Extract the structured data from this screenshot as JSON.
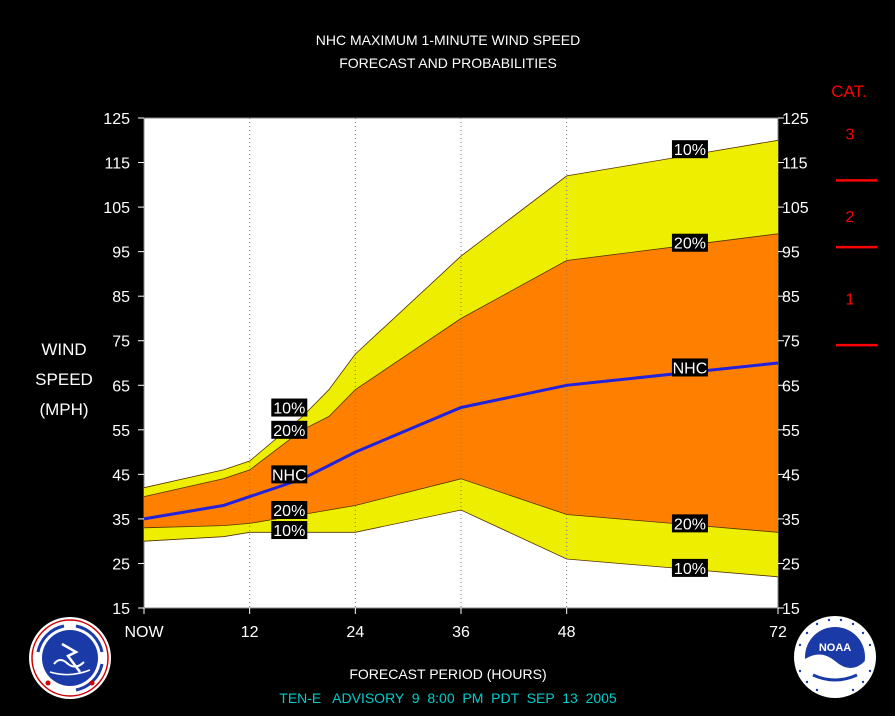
{
  "title_line1": "NHC MAXIMUM 1-MINUTE WIND SPEED",
  "title_line2": "FORECAST AND PROBABILITIES",
  "ylabel_lines": [
    "WIND",
    "SPEED",
    "(MPH)"
  ],
  "xlabel": "FORECAST PERIOD (HOURS)",
  "advisory": "TEN-E   ADVISORY  9  8:00  PM  PDT  SEP  13  2005",
  "category_header": "CAT.",
  "categories": [
    {
      "label": "3",
      "center_mph": 121.5
    },
    {
      "label": "2",
      "center_mph": 103
    },
    {
      "label": "1",
      "center_mph": 84.5
    }
  ],
  "category_boundaries_mph": [
    111,
    96,
    74
  ],
  "logos": {
    "left": "national-weather-service-logo",
    "right": "noaa-logo"
  },
  "colors": {
    "background": "#000000",
    "plot_bg": "#ffffff",
    "band_10": "#eeee00",
    "band_20": "#ff8000",
    "nhc_line": "#2222dd",
    "category": "#ff0000",
    "advisory_text": "#00cccc"
  },
  "chart_data": {
    "type": "area",
    "title": "NHC MAXIMUM 1-MINUTE WIND SPEED FORECAST AND PROBABILITIES",
    "xlabel": "FORECAST PERIOD (HOURS)",
    "ylabel": "WIND SPEED (MPH)",
    "x_ticks": [
      {
        "value": 0,
        "label": "NOW"
      },
      {
        "value": 12,
        "label": "12"
      },
      {
        "value": 24,
        "label": "24"
      },
      {
        "value": 36,
        "label": "36"
      },
      {
        "value": 48,
        "label": "48"
      },
      {
        "value": 72,
        "label": "72"
      }
    ],
    "y_ticks": [
      15,
      25,
      35,
      45,
      55,
      65,
      75,
      85,
      95,
      105,
      115,
      125
    ],
    "xlim": [
      0,
      72
    ],
    "ylim": [
      15,
      125
    ],
    "x": [
      0,
      9,
      12,
      18,
      21,
      24,
      36,
      48,
      60,
      72
    ],
    "series": [
      {
        "name": "10%",
        "values": [
          42,
          46,
          48,
          58,
          64,
          72,
          94,
          112,
          116,
          120
        ]
      },
      {
        "name": "20%",
        "values": [
          40,
          44,
          46,
          55,
          58,
          64,
          80,
          93,
          96,
          99
        ]
      },
      {
        "name": "NHC",
        "values": [
          35,
          38,
          40,
          44,
          47,
          50,
          60,
          65,
          67.5,
          70
        ]
      },
      {
        "name": "20%",
        "values": [
          33,
          33.5,
          34,
          36,
          37,
          38,
          44,
          36,
          34,
          32
        ]
      },
      {
        "name": "10%",
        "values": [
          30,
          31,
          32,
          32,
          32,
          32,
          37,
          26,
          24,
          22
        ]
      }
    ],
    "annotations": [
      {
        "text": "10%",
        "x": 16.5,
        "y": 60
      },
      {
        "text": "20%",
        "x": 16.5,
        "y": 55
      },
      {
        "text": "NHC",
        "x": 16.5,
        "y": 45
      },
      {
        "text": "20%",
        "x": 16.5,
        "y": 37
      },
      {
        "text": "10%",
        "x": 16.5,
        "y": 32.5
      },
      {
        "text": "10%",
        "x": 62,
        "y": 118
      },
      {
        "text": "20%",
        "x": 62,
        "y": 97
      },
      {
        "text": "NHC",
        "x": 62,
        "y": 69
      },
      {
        "text": "20%",
        "x": 62,
        "y": 34
      },
      {
        "text": "10%",
        "x": 62,
        "y": 24
      }
    ],
    "grid": "dotted vertical lines at 12, 24, 36, 48"
  }
}
